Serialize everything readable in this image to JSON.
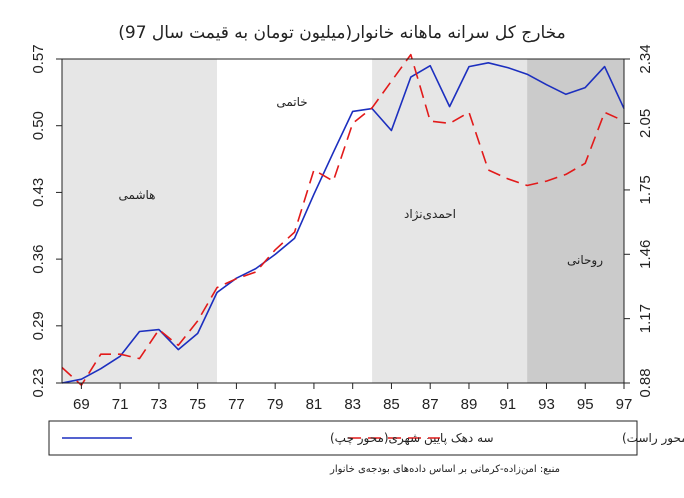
{
  "chart_data": {
    "type": "line",
    "title": "مخارج کل سرانه ماهانه خانوار(میلیون تومان به قیمت سال 97)",
    "source": "منبع: امن‌زاده-کرمانی بر اساس داده‌های بودجه‌ی خانوار",
    "x": [
      68,
      69,
      70,
      71,
      72,
      73,
      74,
      75,
      76,
      77,
      78,
      79,
      80,
      81,
      82,
      83,
      84,
      85,
      86,
      87,
      88,
      89,
      90,
      91,
      92,
      93,
      94,
      95,
      96,
      97
    ],
    "x_ticks": [
      "69",
      "71",
      "73",
      "75",
      "77",
      "79",
      "81",
      "83",
      "85",
      "87",
      "89",
      "91",
      "93",
      "95",
      "97"
    ],
    "x_tick_values": [
      69,
      71,
      73,
      75,
      77,
      79,
      81,
      83,
      85,
      87,
      89,
      91,
      93,
      95,
      97
    ],
    "left_axis": {
      "ticks": [
        "0.23",
        "0.29",
        "0.36",
        "0.43",
        "0.50",
        "0.57"
      ],
      "tick_values": [
        0.23,
        0.29,
        0.36,
        0.43,
        0.5,
        0.57
      ],
      "range": [
        0.23,
        0.57
      ]
    },
    "right_axis": {
      "ticks": [
        "0.88",
        "1.17",
        "1.46",
        "1.75",
        "2.05",
        "2.34"
      ],
      "tick_values": [
        0.88,
        1.17,
        1.46,
        1.75,
        2.05,
        2.34
      ],
      "range": [
        0.88,
        2.34
      ]
    },
    "series": [
      {
        "name": "سه دهک پایین شهری(محور چپ)",
        "axis": "left",
        "color": "#1c2fbf",
        "dash": "solid",
        "values": [
          0.23,
          0.234,
          0.245,
          0.258,
          0.284,
          0.286,
          0.265,
          0.282,
          0.325,
          0.34,
          0.35,
          0.365,
          0.382,
          0.428,
          0.472,
          0.515,
          0.518,
          0.495,
          0.551,
          0.563,
          0.52,
          0.562,
          0.566,
          0.561,
          0.554,
          0.543,
          0.533,
          0.54,
          0.562,
          0.518
        ]
      },
      {
        "name": "سه دهک بالای شهری(محور راست)",
        "axis": "right",
        "color": "#e21a1a",
        "dash": "dashed",
        "values": [
          0.95,
          0.87,
          1.01,
          1.01,
          0.99,
          1.12,
          1.05,
          1.16,
          1.31,
          1.35,
          1.38,
          1.48,
          1.56,
          1.84,
          1.79,
          2.05,
          2.12,
          2.24,
          2.36,
          2.06,
          2.05,
          2.1,
          1.84,
          1.8,
          1.77,
          1.79,
          1.82,
          1.87,
          2.1,
          2.06
        ]
      }
    ],
    "shaded_periods": [
      {
        "label": "هاشمی",
        "from": 68,
        "to": 76,
        "color": "#e6e6e6"
      },
      {
        "label": "خاتمی",
        "from": 76,
        "to": 84,
        "color": "#ffffff"
      },
      {
        "label": "احمدی‌نژاد",
        "from": 84,
        "to": 92,
        "color": "#e6e6e6"
      },
      {
        "label": "روحانی",
        "from": 92,
        "to": 97,
        "color": "#cbcbcb"
      }
    ],
    "legend_position": "bottom"
  }
}
